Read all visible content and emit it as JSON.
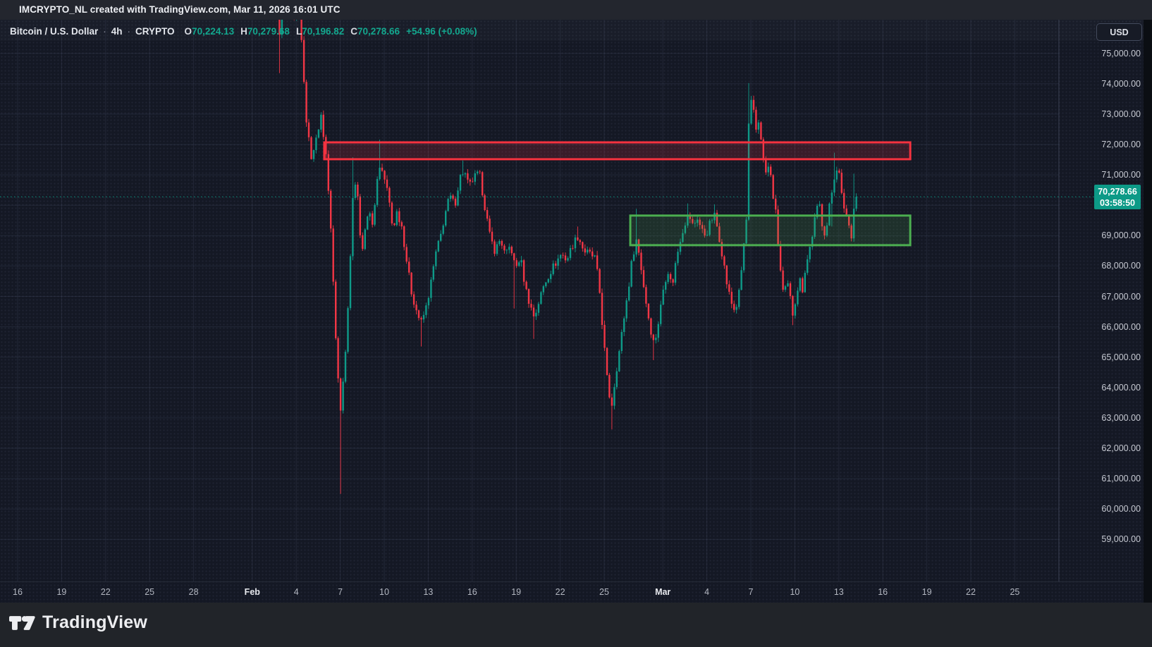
{
  "attribution_bar": {
    "text": "IMCRYPTO_NL created with TradingView.com, Mar 11, 2026 16:01 UTC"
  },
  "legend": {
    "symbol": "Bitcoin / U.S. Dollar",
    "separator": "·",
    "interval": "4h",
    "exchange": "CRYPTO",
    "ohlc": [
      {
        "k": "O",
        "v": "70,224.13"
      },
      {
        "k": "H",
        "v": "70,279.68"
      },
      {
        "k": "L",
        "v": "70,196.82"
      },
      {
        "k": "C",
        "v": "70,278.66"
      }
    ],
    "change": "+54.96 (+0.08%)"
  },
  "currency_button": {
    "label": "USD"
  },
  "price_axis": {
    "labels": [
      "75,000.00",
      "74,000.00",
      "73,000.00",
      "72,000.00",
      "71,000.00",
      "70,000.00",
      "69,000.00",
      "68,000.00",
      "67,000.00",
      "66,000.00",
      "65,000.00",
      "64,000.00",
      "63,000.00",
      "62,000.00",
      "61,000.00",
      "60,000.00",
      "59,000.00"
    ],
    "top_price": 75000,
    "step": 1000
  },
  "time_axis": {
    "labels": [
      {
        "d": 0,
        "t": "16"
      },
      {
        "d": 3,
        "t": "19"
      },
      {
        "d": 6,
        "t": "22"
      },
      {
        "d": 9,
        "t": "25"
      },
      {
        "d": 12,
        "t": "28"
      },
      {
        "d": 16,
        "t": "Feb",
        "m": true
      },
      {
        "d": 19,
        "t": "4"
      },
      {
        "d": 22,
        "t": "7"
      },
      {
        "d": 25,
        "t": "10"
      },
      {
        "d": 28,
        "t": "13"
      },
      {
        "d": 31,
        "t": "16"
      },
      {
        "d": 34,
        "t": "19"
      },
      {
        "d": 37,
        "t": "22"
      },
      {
        "d": 40,
        "t": "25"
      },
      {
        "d": 44,
        "t": "Mar",
        "m": true
      },
      {
        "d": 47,
        "t": "4"
      },
      {
        "d": 50,
        "t": "7"
      },
      {
        "d": 53,
        "t": "10"
      },
      {
        "d": 56,
        "t": "13"
      },
      {
        "d": 59,
        "t": "16"
      },
      {
        "d": 62,
        "t": "19"
      },
      {
        "d": 65,
        "t": "22"
      },
      {
        "d": 68,
        "t": "25"
      }
    ]
  },
  "last_price_label": {
    "text": "70,278.66",
    "countdown": "03:58:50"
  },
  "watermark_logo": {
    "text": "TradingView"
  },
  "colors": {
    "up": "#0e9a88",
    "down": "#f23645",
    "resistance_border": "#f5323f",
    "resistance_fill": "rgba(242,54,69,0.17)",
    "support_border": "#4caf50",
    "support_fill": "rgba(84,175,80,0.16)",
    "last_price_bg": "#0d9a87",
    "grid": "rgba(88,97,122,0.22)"
  },
  "chart_data": {
    "type": "candlestick",
    "title": "Bitcoin / U.S. Dollar",
    "interval": "4h",
    "exchange": "CRYPTO",
    "ohlc_current": {
      "open": 70224.13,
      "high": 70279.68,
      "low": 70196.82,
      "close": 70278.66
    },
    "change": 54.96,
    "change_pct": 0.08,
    "last_price": 70278.66,
    "visible_price_range": [
      59000,
      75000
    ],
    "price_grid_step": 1000,
    "day0_date": "Jan 16",
    "candle_days": 0.1666667,
    "zones": [
      {
        "name": "resistance",
        "day_start": 20.91,
        "day_end": 60.87,
        "price_top": 72070,
        "price_bottom": 71515
      },
      {
        "name": "support",
        "day_start": 41.78,
        "day_end": 60.87,
        "price_top": 69660,
        "price_bottom": 68685
      }
    ],
    "price_path": [
      [
        17.69,
        76600
      ],
      [
        17.88,
        75600,
        null,
        74350
      ],
      [
        18.13,
        76900
      ],
      [
        18.41,
        76300
      ],
      [
        18.65,
        76800
      ],
      [
        18.89,
        75900
      ],
      [
        19.18,
        76400
      ],
      [
        19.42,
        75000
      ],
      [
        19.62,
        73100
      ],
      [
        19.86,
        72100
      ],
      [
        20.1,
        71400
      ],
      [
        20.38,
        72400
      ],
      [
        20.72,
        72900
      ],
      [
        21.01,
        71700
      ],
      [
        21.3,
        69900
      ],
      [
        21.54,
        67200
      ],
      [
        21.78,
        64800
      ],
      [
        22.02,
        63200,
        null,
        60500
      ],
      [
        22.31,
        64900
      ],
      [
        22.6,
        67400
      ],
      [
        22.93,
        71000,
        71580
      ],
      [
        23.17,
        70500
      ],
      [
        23.41,
        68500
      ],
      [
        23.65,
        68900
      ],
      [
        23.94,
        70100
      ],
      [
        24.18,
        69200
      ],
      [
        24.47,
        70700
      ],
      [
        24.71,
        71350,
        72160
      ],
      [
        25.0,
        70900
      ],
      [
        25.29,
        70300
      ],
      [
        25.58,
        69200
      ],
      [
        25.87,
        69800
      ],
      [
        26.2,
        69300
      ],
      [
        26.49,
        68300
      ],
      [
        26.83,
        67200
      ],
      [
        27.16,
        66600
      ],
      [
        27.5,
        66100,
        null,
        65350
      ],
      [
        27.84,
        66600
      ],
      [
        28.17,
        67400
      ],
      [
        28.51,
        68400
      ],
      [
        28.85,
        69000
      ],
      [
        29.13,
        69700
      ],
      [
        29.47,
        70300
      ],
      [
        29.81,
        70000
      ],
      [
        30.14,
        70900
      ],
      [
        30.43,
        71150,
        71470
      ],
      [
        30.77,
        70600
      ],
      [
        31.11,
        70900
      ],
      [
        31.49,
        71050
      ],
      [
        31.88,
        69900
      ],
      [
        32.21,
        68950
      ],
      [
        32.55,
        68500
      ],
      [
        32.93,
        68900
      ],
      [
        33.27,
        68300
      ],
      [
        33.61,
        68700
      ],
      [
        33.94,
        67900,
        null,
        66600
      ],
      [
        34.28,
        68300
      ],
      [
        34.62,
        67300
      ],
      [
        34.95,
        66700
      ],
      [
        35.24,
        66300,
        null,
        65600
      ],
      [
        35.58,
        66900
      ],
      [
        35.91,
        67400
      ],
      [
        36.3,
        67800
      ],
      [
        36.68,
        68100
      ],
      [
        37.07,
        68400
      ],
      [
        37.45,
        68200
      ],
      [
        37.84,
        68700
      ],
      [
        38.22,
        69000,
        69300
      ],
      [
        38.61,
        68500
      ],
      [
        38.99,
        68400
      ],
      [
        39.38,
        68250
      ],
      [
        39.66,
        67300
      ],
      [
        39.9,
        65900
      ],
      [
        40.19,
        64300
      ],
      [
        40.48,
        63300,
        null,
        62620
      ],
      [
        40.77,
        64400
      ],
      [
        41.06,
        65300
      ],
      [
        41.35,
        66300
      ],
      [
        41.63,
        67200
      ],
      [
        41.92,
        68300
      ],
      [
        42.21,
        68900,
        69880
      ],
      [
        42.5,
        68000
      ],
      [
        42.79,
        67000
      ],
      [
        43.13,
        66000
      ],
      [
        43.41,
        65400,
        null,
        64900
      ],
      [
        43.75,
        66300
      ],
      [
        44.04,
        67300
      ],
      [
        44.33,
        67900
      ],
      [
        44.62,
        67300
      ],
      [
        44.9,
        68200
      ],
      [
        45.19,
        68900
      ],
      [
        45.48,
        69400
      ],
      [
        45.77,
        69700,
        70060
      ],
      [
        46.06,
        69300
      ],
      [
        46.35,
        69600
      ],
      [
        46.63,
        69200
      ],
      [
        46.92,
        69000
      ],
      [
        47.21,
        69400
      ],
      [
        47.5,
        69700,
        70030
      ],
      [
        47.79,
        69100
      ],
      [
        48.08,
        68300
      ],
      [
        48.37,
        67400
      ],
      [
        48.65,
        66800
      ],
      [
        48.94,
        66500
      ],
      [
        49.23,
        67200
      ],
      [
        49.52,
        68700
      ],
      [
        49.71,
        69600
      ],
      [
        49.9,
        73500,
        74020
      ],
      [
        50.14,
        73200
      ],
      [
        50.38,
        72400
      ],
      [
        50.58,
        72900
      ],
      [
        50.82,
        71500
      ],
      [
        51.06,
        71000
      ],
      [
        51.25,
        71350
      ],
      [
        51.49,
        70400
      ],
      [
        51.68,
        69800
      ],
      [
        51.88,
        68600
      ],
      [
        52.07,
        67600
      ],
      [
        52.26,
        66900
      ],
      [
        52.45,
        67500
      ],
      [
        52.64,
        67100
      ],
      [
        52.84,
        66400,
        null,
        66050
      ],
      [
        53.08,
        67000
      ],
      [
        53.32,
        67600
      ],
      [
        53.51,
        67200
      ],
      [
        53.7,
        67900
      ],
      [
        53.94,
        68400
      ],
      [
        54.18,
        69000
      ],
      [
        54.42,
        69700
      ],
      [
        54.66,
        70100
      ],
      [
        54.86,
        69400
      ],
      [
        55.1,
        69000
      ],
      [
        55.34,
        69900
      ],
      [
        55.58,
        70600,
        null,
        69300
      ],
      [
        55.77,
        71200,
        71730
      ],
      [
        55.96,
        71300
      ],
      [
        56.15,
        70400
      ],
      [
        56.35,
        69950
      ],
      [
        56.54,
        69650
      ],
      [
        56.73,
        69250
      ],
      [
        56.88,
        69000,
        null,
        68930
      ],
      [
        57.07,
        70200,
        71040
      ],
      [
        57.26,
        70278.66
      ]
    ]
  }
}
